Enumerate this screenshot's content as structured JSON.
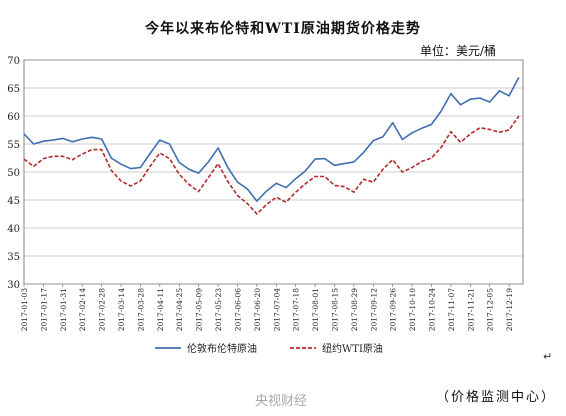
{
  "chart_data": {
    "type": "line",
    "title": "今年以来布伦特和WTI原油期货价格走势",
    "unit_label": "单位：美元/桶",
    "source_note": "（价格监测中心）",
    "watermark": "央视财经",
    "ylim": [
      30,
      70
    ],
    "yticks": [
      "30",
      "35",
      "40",
      "45",
      "50",
      "55",
      "60",
      "65",
      "70"
    ],
    "x_tick_labels": [
      "2017-01-03",
      "2017-01-17",
      "2017-01-31",
      "2017-02-14",
      "2017-02-28",
      "2017-03-14",
      "2017-03-28",
      "2017-04-11",
      "2017-04-25",
      "2017-05-09",
      "2017-05-23",
      "2017-06-06",
      "2017-06-20",
      "2017-07-04",
      "2017-07-18",
      "2017-08-01",
      "2017-08-15",
      "2017-08-29",
      "2017-09-12",
      "2017-09-26",
      "2017-10-10",
      "2017-10-24",
      "2017-11-07",
      "2017-11-21",
      "2017-12-05",
      "2017-12-19"
    ],
    "colors": {
      "brent": "#3f6fae",
      "wti": "#b22a2a"
    },
    "series": [
      {
        "name": "伦敦布伦特原油",
        "style": "solid",
        "x": [
          "2017-01-03",
          "2017-01-10",
          "2017-01-17",
          "2017-01-24",
          "2017-01-31",
          "2017-02-07",
          "2017-02-14",
          "2017-02-21",
          "2017-02-28",
          "2017-03-07",
          "2017-03-14",
          "2017-03-21",
          "2017-03-28",
          "2017-04-04",
          "2017-04-11",
          "2017-04-18",
          "2017-04-25",
          "2017-05-02",
          "2017-05-09",
          "2017-05-16",
          "2017-05-23",
          "2017-05-30",
          "2017-06-06",
          "2017-06-13",
          "2017-06-20",
          "2017-06-27",
          "2017-07-04",
          "2017-07-11",
          "2017-07-18",
          "2017-07-25",
          "2017-08-01",
          "2017-08-08",
          "2017-08-15",
          "2017-08-22",
          "2017-08-29",
          "2017-09-05",
          "2017-09-12",
          "2017-09-19",
          "2017-09-26",
          "2017-10-03",
          "2017-10-10",
          "2017-10-17",
          "2017-10-24",
          "2017-10-31",
          "2017-11-07",
          "2017-11-14",
          "2017-11-21",
          "2017-11-28",
          "2017-12-05",
          "2017-12-12",
          "2017-12-19",
          "2017-12-26"
        ],
        "values": [
          56.8,
          55.0,
          55.5,
          55.7,
          56.0,
          55.4,
          55.9,
          56.2,
          55.9,
          52.5,
          51.4,
          50.6,
          50.8,
          53.3,
          55.7,
          55.0,
          51.7,
          50.5,
          49.8,
          51.8,
          54.3,
          50.8,
          48.2,
          47.0,
          44.8,
          46.6,
          48.0,
          47.2,
          48.8,
          50.2,
          52.3,
          52.4,
          51.2,
          51.5,
          51.8,
          53.5,
          55.6,
          56.3,
          58.8,
          55.8,
          57.0,
          57.8,
          58.5,
          60.9,
          64.0,
          62.0,
          63.0,
          63.2,
          62.5,
          64.5,
          63.6,
          66.9
        ]
      },
      {
        "name": "纽约WTI原油",
        "style": "dashed",
        "x": [
          "2017-01-03",
          "2017-01-10",
          "2017-01-17",
          "2017-01-24",
          "2017-01-31",
          "2017-02-07",
          "2017-02-14",
          "2017-02-21",
          "2017-02-28",
          "2017-03-07",
          "2017-03-14",
          "2017-03-21",
          "2017-03-28",
          "2017-04-04",
          "2017-04-11",
          "2017-04-18",
          "2017-04-25",
          "2017-05-02",
          "2017-05-09",
          "2017-05-16",
          "2017-05-23",
          "2017-05-30",
          "2017-06-06",
          "2017-06-13",
          "2017-06-20",
          "2017-06-27",
          "2017-07-04",
          "2017-07-11",
          "2017-07-18",
          "2017-07-25",
          "2017-08-01",
          "2017-08-08",
          "2017-08-15",
          "2017-08-22",
          "2017-08-29",
          "2017-09-05",
          "2017-09-12",
          "2017-09-19",
          "2017-09-26",
          "2017-10-03",
          "2017-10-10",
          "2017-10-17",
          "2017-10-24",
          "2017-10-31",
          "2017-11-07",
          "2017-11-14",
          "2017-11-21",
          "2017-11-28",
          "2017-12-05",
          "2017-12-12",
          "2017-12-19",
          "2017-12-26"
        ],
        "values": [
          52.3,
          51.0,
          52.4,
          52.8,
          52.8,
          52.2,
          53.2,
          54.0,
          54.0,
          50.3,
          48.4,
          47.5,
          48.4,
          51.0,
          53.4,
          52.4,
          49.6,
          47.8,
          46.5,
          49.0,
          51.5,
          48.3,
          45.8,
          44.4,
          42.5,
          44.2,
          45.5,
          44.6,
          46.4,
          47.9,
          49.2,
          49.2,
          47.6,
          47.4,
          46.4,
          48.7,
          48.2,
          50.5,
          52.2,
          50.0,
          50.8,
          51.9,
          52.5,
          54.4,
          57.2,
          55.3,
          56.8,
          57.9,
          57.6,
          57.1,
          57.5,
          60.0
        ]
      }
    ]
  }
}
